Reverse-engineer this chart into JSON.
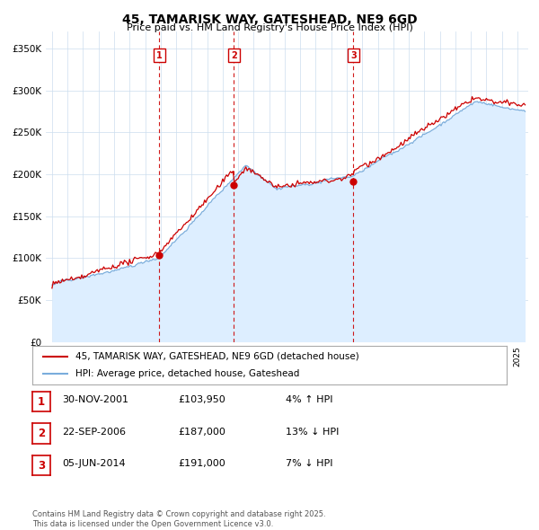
{
  "title": "45, TAMARISK WAY, GATESHEAD, NE9 6GD",
  "subtitle": "Price paid vs. HM Land Registry's House Price Index (HPI)",
  "ylim": [
    0,
    370000
  ],
  "yticks": [
    0,
    50000,
    100000,
    150000,
    200000,
    250000,
    300000,
    350000
  ],
  "ytick_labels": [
    "£0",
    "£50K",
    "£100K",
    "£150K",
    "£200K",
    "£250K",
    "£300K",
    "£350K"
  ],
  "line1_color": "#cc0000",
  "line2_color": "#7aaddc",
  "line2_fill_color": "#ddeeff",
  "vline_color": "#cc0000",
  "purchase_dates": [
    2001.92,
    2006.73,
    2014.43
  ],
  "purchase_prices": [
    103950,
    187000,
    191000
  ],
  "purchase_labels": [
    "1",
    "2",
    "3"
  ],
  "legend_line1": "45, TAMARISK WAY, GATESHEAD, NE9 6GD (detached house)",
  "legend_line2": "HPI: Average price, detached house, Gateshead",
  "table_data": [
    [
      "1",
      "30-NOV-2001",
      "£103,950",
      "4% ↑ HPI"
    ],
    [
      "2",
      "22-SEP-2006",
      "£187,000",
      "13% ↓ HPI"
    ],
    [
      "3",
      "05-JUN-2014",
      "£191,000",
      "7% ↓ HPI"
    ]
  ],
  "footer": "Contains HM Land Registry data © Crown copyright and database right 2025.\nThis data is licensed under the Open Government Licence v3.0.",
  "background_color": "#ffffff",
  "grid_color": "#ccddee"
}
